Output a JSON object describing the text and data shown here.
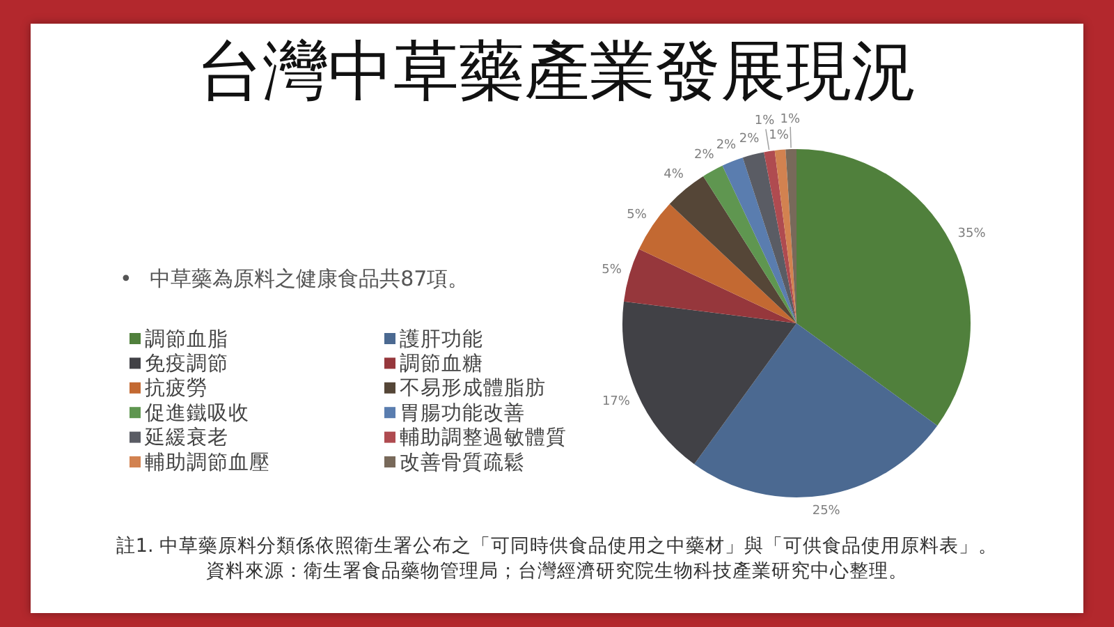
{
  "chart_data": {
    "type": "pie",
    "title": "台灣中草藥產業發展現況",
    "subtitle": "• 中草藥為原料之健康食品共87項。",
    "categories": [
      "調節血脂",
      "護肝功能",
      "免疫調節",
      "調節血糖",
      "抗疲勞",
      "不易形成體脂肪",
      "促進鐵吸收",
      "胃腸功能改善",
      "延緩衰老",
      "輔助調整過敏體質",
      "輔助調節血壓",
      "改善骨質疏鬆"
    ],
    "values": [
      35,
      25,
      17,
      5,
      5,
      4,
      2,
      2,
      2,
      1,
      1,
      1
    ],
    "value_labels": [
      "35%",
      "25%",
      "17%",
      "5%",
      "5%",
      "4%",
      "2%",
      "2%",
      "2%",
      "1%",
      "1%",
      "1%"
    ],
    "colors": [
      "#50803c",
      "#4b6991",
      "#414146",
      "#96373c",
      "#c36932",
      "#554637",
      "#5f9650",
      "#5a7daf",
      "#5a5c64",
      "#af4b50",
      "#d28250",
      "#78695a"
    ],
    "legend": "left",
    "annotations": [
      "註1. 中草藥原料分類係依照衛生署公布之「可同時供食品使用之中藥材」與「可供食品使用原料表」。",
      "資料來源：衛生署食品藥物管理局；台灣經濟研究院生物科技產業研究中心整理。"
    ]
  }
}
